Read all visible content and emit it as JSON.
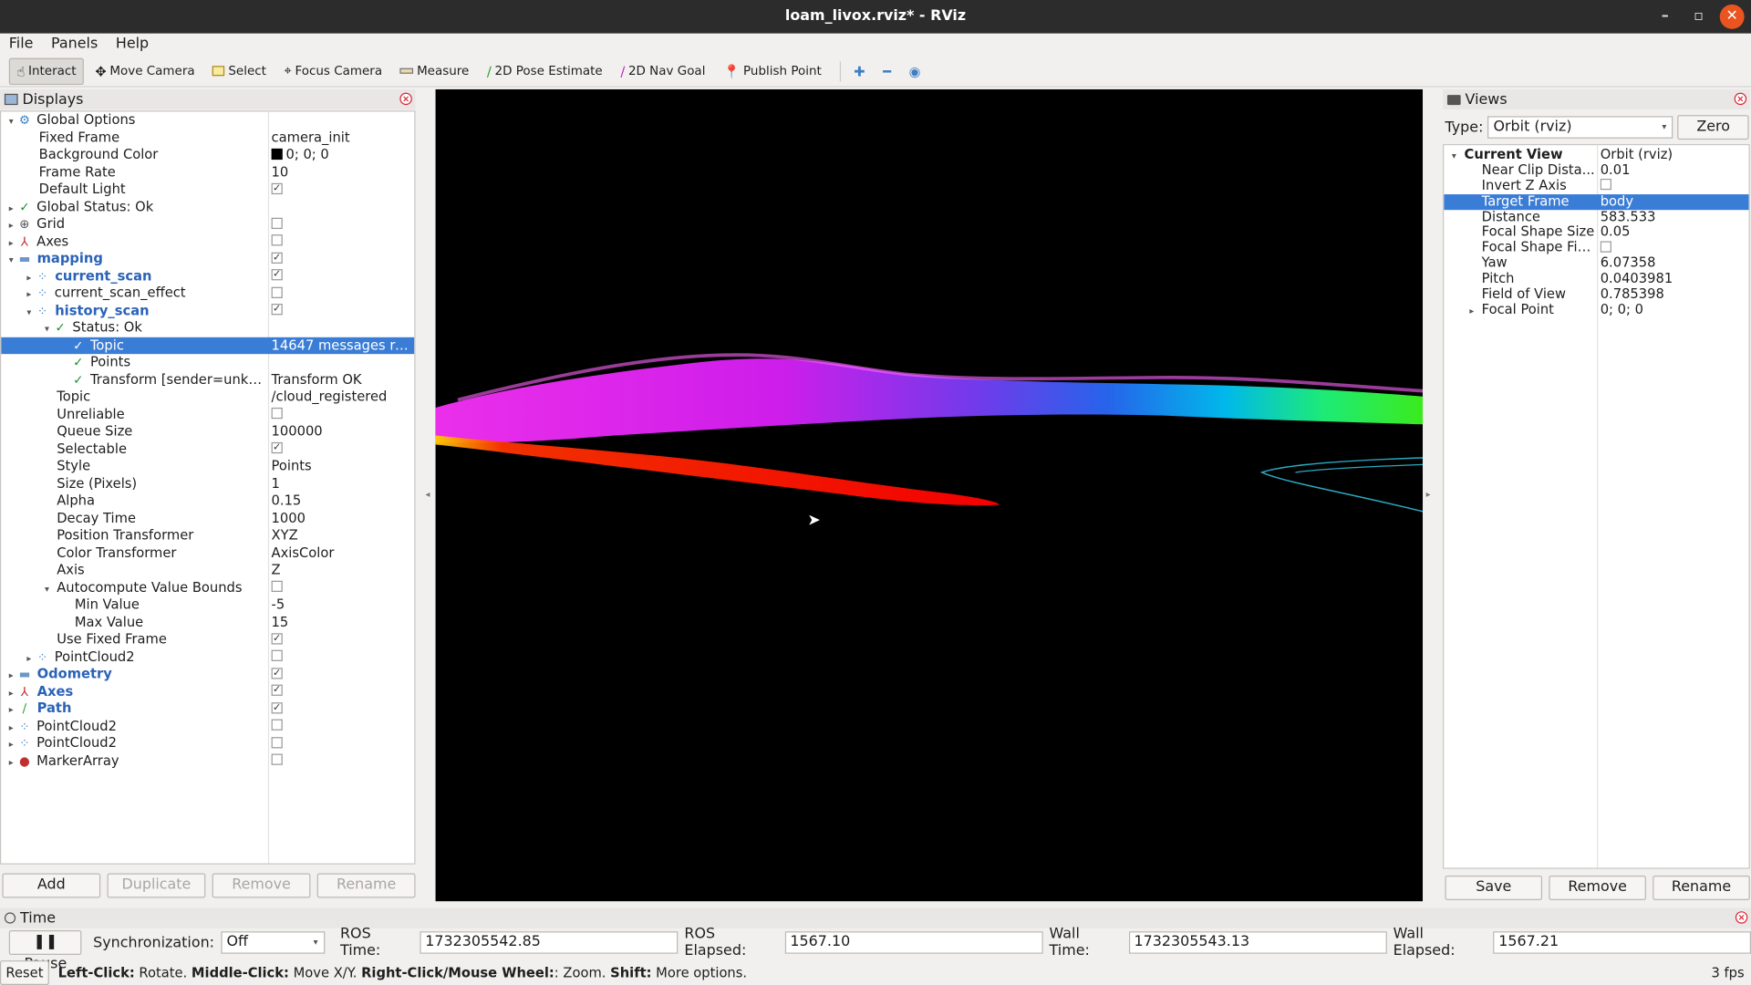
{
  "window": {
    "title": "loam_livox.rviz* - RViz",
    "minimize": "–",
    "maximize": "▫",
    "close": "✕"
  },
  "menu": [
    "File",
    "Panels",
    "Help"
  ],
  "toolbar": {
    "interact": "Interact",
    "move_camera": "Move Camera",
    "select": "Select",
    "focus_camera": "Focus Camera",
    "measure": "Measure",
    "pose_estimate": "2D Pose Estimate",
    "nav_goal": "2D Nav Goal",
    "publish_point": "Publish Point"
  },
  "displays": {
    "title": "Displays",
    "rows": [
      {
        "indent": 0,
        "arrow": "▾",
        "icon": "⚙",
        "icon_color": "#3d7fc1",
        "name": "Global Options",
        "val": "",
        "bold": false
      },
      {
        "indent": 1,
        "arrow": "",
        "icon": "",
        "name": "Fixed Frame",
        "val": "camera_init"
      },
      {
        "indent": 1,
        "arrow": "",
        "icon": "",
        "name": "Background Color",
        "val": "0; 0; 0",
        "swatch": true
      },
      {
        "indent": 1,
        "arrow": "",
        "icon": "",
        "name": "Frame Rate",
        "val": "10"
      },
      {
        "indent": 1,
        "arrow": "",
        "icon": "",
        "name": "Default Light",
        "cb": "✓"
      },
      {
        "indent": 0,
        "arrow": "▸",
        "icon": "✓",
        "check": true,
        "name": "Global Status: Ok",
        "val": ""
      },
      {
        "indent": 0,
        "arrow": "▸",
        "icon": "⊕",
        "icon_color": "#555",
        "name": "Grid",
        "cb": " "
      },
      {
        "indent": 0,
        "arrow": "▸",
        "icon": "⅄",
        "icon_color": "#c03030",
        "name": "Axes",
        "cb": " "
      },
      {
        "indent": 0,
        "arrow": "▾",
        "icon": "▬",
        "icon_color": "#6b96c9",
        "name": "mapping",
        "cb": "✓",
        "bold": true
      },
      {
        "indent": 1,
        "arrow": "▸",
        "icon": "⁘",
        "icon_color": "#3d7fc1",
        "name": "current_scan",
        "cb": "✓",
        "bold": true
      },
      {
        "indent": 1,
        "arrow": "▸",
        "icon": "⁘",
        "icon_color": "#3d7fc1",
        "name": "current_scan_effect",
        "cb": " "
      },
      {
        "indent": 1,
        "arrow": "▾",
        "icon": "⁘",
        "icon_color": "#3d7fc1",
        "name": "history_scan",
        "cb": "✓",
        "bold": true
      },
      {
        "indent": 2,
        "arrow": "▾",
        "icon": "✓",
        "check": true,
        "name": "Status: Ok",
        "val": ""
      },
      {
        "indent": 3,
        "arrow": "",
        "icon": "✓",
        "check": true,
        "name": "Topic",
        "val": "14647 messages rec...",
        "sel": true
      },
      {
        "indent": 3,
        "arrow": "",
        "icon": "✓",
        "check": true,
        "name": "Points",
        "val": ""
      },
      {
        "indent": 3,
        "arrow": "",
        "icon": "✓",
        "check": true,
        "name": "Transform [sender=unkn...",
        "val": "Transform OK"
      },
      {
        "indent": 2,
        "arrow": "",
        "icon": "",
        "name": "Topic",
        "val": "/cloud_registered"
      },
      {
        "indent": 2,
        "arrow": "",
        "icon": "",
        "name": "Unreliable",
        "cb": " "
      },
      {
        "indent": 2,
        "arrow": "",
        "icon": "",
        "name": "Queue Size",
        "val": "100000"
      },
      {
        "indent": 2,
        "arrow": "",
        "icon": "",
        "name": "Selectable",
        "cb": "✓"
      },
      {
        "indent": 2,
        "arrow": "",
        "icon": "",
        "name": "Style",
        "val": "Points"
      },
      {
        "indent": 2,
        "arrow": "",
        "icon": "",
        "name": "Size (Pixels)",
        "val": "1"
      },
      {
        "indent": 2,
        "arrow": "",
        "icon": "",
        "name": "Alpha",
        "val": "0.15"
      },
      {
        "indent": 2,
        "arrow": "",
        "icon": "",
        "name": "Decay Time",
        "val": "1000"
      },
      {
        "indent": 2,
        "arrow": "",
        "icon": "",
        "name": "Position Transformer",
        "val": "XYZ"
      },
      {
        "indent": 2,
        "arrow": "",
        "icon": "",
        "name": "Color Transformer",
        "val": "AxisColor"
      },
      {
        "indent": 2,
        "arrow": "",
        "icon": "",
        "name": "Axis",
        "val": "Z"
      },
      {
        "indent": 2,
        "arrow": "▾",
        "icon": "",
        "name": "Autocompute Value Bounds",
        "cb": " "
      },
      {
        "indent": 3,
        "arrow": "",
        "icon": "",
        "name": "Min Value",
        "val": "-5"
      },
      {
        "indent": 3,
        "arrow": "",
        "icon": "",
        "name": "Max Value",
        "val": "15"
      },
      {
        "indent": 2,
        "arrow": "",
        "icon": "",
        "name": "Use Fixed Frame",
        "cb": "✓"
      },
      {
        "indent": 1,
        "arrow": "▸",
        "icon": "⁘",
        "icon_color": "#3d7fc1",
        "name": "PointCloud2",
        "cb": " "
      },
      {
        "indent": 0,
        "arrow": "▸",
        "icon": "▬",
        "icon_color": "#6b96c9",
        "name": "Odometry",
        "cb": "✓",
        "bold": true
      },
      {
        "indent": 0,
        "arrow": "▸",
        "icon": "⅄",
        "icon_color": "#c03030",
        "name": "Axes",
        "cb": "✓",
        "bold": true
      },
      {
        "indent": 0,
        "arrow": "▸",
        "icon": "∕",
        "icon_color": "#2aa02a",
        "name": "Path",
        "cb": "✓",
        "bold": true
      },
      {
        "indent": 0,
        "arrow": "▸",
        "icon": "⁘",
        "icon_color": "#3d7fc1",
        "name": "PointCloud2",
        "cb": " "
      },
      {
        "indent": 0,
        "arrow": "▸",
        "icon": "⁘",
        "icon_color": "#3d7fc1",
        "name": "PointCloud2",
        "cb": " "
      },
      {
        "indent": 0,
        "arrow": "▸",
        "icon": "●",
        "icon_color": "#c03030",
        "name": "MarkerArray",
        "cb": " "
      }
    ],
    "buttons": {
      "add": "Add",
      "duplicate": "Duplicate",
      "remove": "Remove",
      "rename": "Rename"
    }
  },
  "views": {
    "title": "Views",
    "type_label": "Type:",
    "type_value": "Orbit (rviz)",
    "zero": "Zero",
    "rows": [
      {
        "indent": 0,
        "arrow": "▾",
        "name": "Current View",
        "val": "Orbit (rviz)",
        "bold": true
      },
      {
        "indent": 1,
        "arrow": "",
        "name": "Near Clip Dista...",
        "val": "0.01"
      },
      {
        "indent": 1,
        "arrow": "",
        "name": "Invert Z Axis",
        "cb": " "
      },
      {
        "indent": 1,
        "arrow": "",
        "name": "Target Frame",
        "val": "body",
        "sel": true
      },
      {
        "indent": 1,
        "arrow": "",
        "name": "Distance",
        "val": "583.533"
      },
      {
        "indent": 1,
        "arrow": "",
        "name": "Focal Shape Size",
        "val": "0.05"
      },
      {
        "indent": 1,
        "arrow": "",
        "name": "Focal Shape Fix...",
        "cb": " "
      },
      {
        "indent": 1,
        "arrow": "",
        "name": "Yaw",
        "val": "6.07358"
      },
      {
        "indent": 1,
        "arrow": "",
        "name": "Pitch",
        "val": "0.0403981"
      },
      {
        "indent": 1,
        "arrow": "",
        "name": "Field of View",
        "val": "0.785398"
      },
      {
        "indent": 1,
        "arrow": "▸",
        "name": "Focal Point",
        "val": "0; 0; 0"
      }
    ],
    "buttons": {
      "save": "Save",
      "remove": "Remove",
      "rename": "Rename"
    }
  },
  "time": {
    "title": "Time",
    "pause": "Pause",
    "sync_label": "Synchronization:",
    "sync_value": "Off",
    "ros_time_label": "ROS Time:",
    "ros_time": "1732305542.85",
    "ros_elapsed_label": "ROS Elapsed:",
    "ros_elapsed": "1567.10",
    "wall_time_label": "Wall Time:",
    "wall_time": "1732305543.13",
    "wall_elapsed_label": "Wall Elapsed:",
    "wall_elapsed": "1567.21"
  },
  "status": {
    "reset": "Reset",
    "left_click": "Left-Click:",
    "left_click_desc": "Rotate.",
    "middle_click": "Middle-Click:",
    "middle_click_desc": "Move X/Y.",
    "right_click": "Right-Click/Mouse Wheel:",
    "right_click_desc": ": Zoom.",
    "shift": "Shift:",
    "shift_desc": "More options.",
    "fps": "3 fps"
  }
}
